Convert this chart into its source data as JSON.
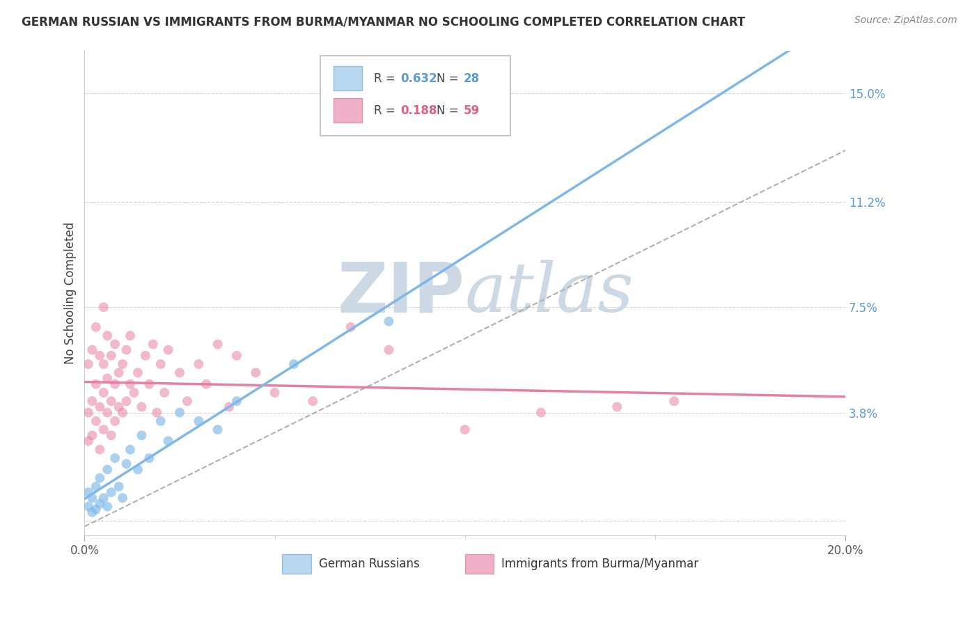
{
  "title": "GERMAN RUSSIAN VS IMMIGRANTS FROM BURMA/MYANMAR NO SCHOOLING COMPLETED CORRELATION CHART",
  "source": "Source: ZipAtlas.com",
  "ylabel": "No Schooling Completed",
  "yticks": [
    0.0,
    0.038,
    0.075,
    0.112,
    0.15
  ],
  "ytick_labels": [
    "",
    "3.8%",
    "7.5%",
    "11.2%",
    "15.0%"
  ],
  "xlim": [
    0.0,
    0.2
  ],
  "ylim": [
    -0.005,
    0.165
  ],
  "series_blue": {
    "name": "German Russians",
    "color": "#7db8e8",
    "R": 0.632,
    "N": 28,
    "x": [
      0.001,
      0.001,
      0.002,
      0.002,
      0.003,
      0.003,
      0.004,
      0.004,
      0.005,
      0.006,
      0.006,
      0.007,
      0.008,
      0.009,
      0.01,
      0.011,
      0.012,
      0.014,
      0.015,
      0.017,
      0.02,
      0.022,
      0.025,
      0.03,
      0.035,
      0.04,
      0.055,
      0.08
    ],
    "y": [
      0.005,
      0.01,
      0.003,
      0.008,
      0.004,
      0.012,
      0.006,
      0.015,
      0.008,
      0.005,
      0.018,
      0.01,
      0.022,
      0.012,
      0.008,
      0.02,
      0.025,
      0.018,
      0.03,
      0.022,
      0.035,
      0.028,
      0.038,
      0.035,
      0.032,
      0.042,
      0.055,
      0.07
    ],
    "marker_size": 100
  },
  "series_pink": {
    "name": "Immigrants from Burma/Myanmar",
    "color": "#e87ea1",
    "R": 0.188,
    "N": 59,
    "x": [
      0.001,
      0.001,
      0.001,
      0.002,
      0.002,
      0.002,
      0.003,
      0.003,
      0.003,
      0.004,
      0.004,
      0.004,
      0.005,
      0.005,
      0.005,
      0.005,
      0.006,
      0.006,
      0.006,
      0.007,
      0.007,
      0.007,
      0.008,
      0.008,
      0.008,
      0.009,
      0.009,
      0.01,
      0.01,
      0.011,
      0.011,
      0.012,
      0.012,
      0.013,
      0.014,
      0.015,
      0.016,
      0.017,
      0.018,
      0.019,
      0.02,
      0.021,
      0.022,
      0.025,
      0.027,
      0.03,
      0.032,
      0.035,
      0.038,
      0.04,
      0.045,
      0.05,
      0.06,
      0.07,
      0.08,
      0.1,
      0.12,
      0.14,
      0.155
    ],
    "y": [
      0.028,
      0.038,
      0.055,
      0.03,
      0.042,
      0.06,
      0.035,
      0.048,
      0.068,
      0.025,
      0.04,
      0.058,
      0.032,
      0.045,
      0.055,
      0.075,
      0.038,
      0.05,
      0.065,
      0.03,
      0.042,
      0.058,
      0.035,
      0.048,
      0.062,
      0.04,
      0.052,
      0.038,
      0.055,
      0.042,
      0.06,
      0.048,
      0.065,
      0.045,
      0.052,
      0.04,
      0.058,
      0.048,
      0.062,
      0.038,
      0.055,
      0.045,
      0.06,
      0.052,
      0.042,
      0.055,
      0.048,
      0.062,
      0.04,
      0.058,
      0.052,
      0.045,
      0.042,
      0.068,
      0.06,
      0.032,
      0.038,
      0.04,
      0.042
    ],
    "marker_size": 100
  },
  "legend_box_color_blue": "#b8d8f0",
  "legend_box_color_pink": "#f0b0c8",
  "r_color_blue": "#5b9bd5",
  "r_color_pink": "#e06080",
  "background_color": "#ffffff",
  "grid_color": "#d0d0d0",
  "watermark_color": "#cdd8e5",
  "dashed_line": {
    "x0": 0.0,
    "y0": -0.002,
    "x1": 0.2,
    "y1": 0.13
  }
}
